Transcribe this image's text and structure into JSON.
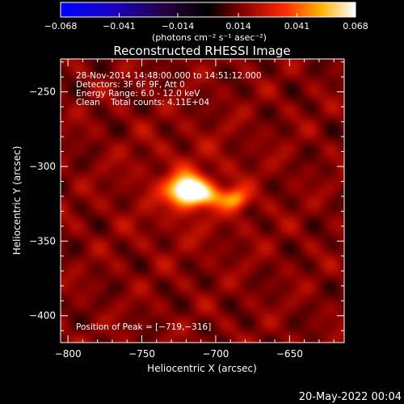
{
  "chart_data": {
    "type": "heatmap",
    "title": "Reconstructed RHESSI Image",
    "xlabel": "Heliocentric X (arcsec)",
    "ylabel": "Heliocentric Y (arcsec)",
    "xlim": [
      -805,
      -613
    ],
    "ylim": [
      -418,
      -228
    ],
    "x_ticks": [
      -800,
      -750,
      -700,
      -650
    ],
    "y_ticks": [
      -400,
      -350,
      -300,
      -250
    ],
    "colorbar": {
      "range": [
        -0.068,
        0.068
      ],
      "tick_values": [
        -0.068,
        -0.041,
        -0.014,
        0.014,
        0.041,
        0.068
      ],
      "tick_labels": [
        "−0.068",
        "−0.041",
        "−0.014",
        "0.014",
        "0.041",
        "0.068"
      ],
      "unit_label": "(photons cm⁻² s⁻¹ asec⁻²)"
    },
    "annotations": [
      "28-Nov-2014 14:48:00.000 to 14:51:12.000",
      "Detectors: 3F 6F 9F, Att 0",
      "Energy Range: 6.0 - 12.0 keV",
      "Clean    Total counts: 4.11E+04"
    ],
    "peak_label": "Position of Peak = [−719,−316]",
    "sources": [
      {
        "x": -719,
        "y": -316,
        "peak": 0.068,
        "sx": 9,
        "sy": 7
      },
      {
        "x": -686,
        "y": -322,
        "peak": 0.03,
        "sx": 6,
        "sy": 5
      },
      {
        "x": -703,
        "y": -320,
        "peak": 0.022,
        "sx": 9,
        "sy": 5
      }
    ],
    "background_level": 0.015
  },
  "footer_date": "20-May-2022 00:04"
}
